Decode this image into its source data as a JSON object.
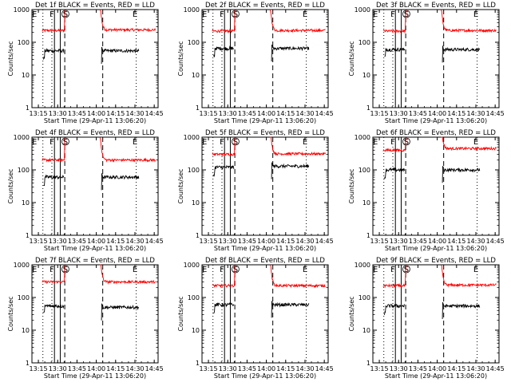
{
  "chart_data": {
    "type": "line",
    "x_ticks": [
      "13:15",
      "13:30",
      "13:45",
      "14:00",
      "14:15",
      "14:30",
      "14:45"
    ],
    "y_ticks": [
      "1",
      "10",
      "100",
      "1000"
    ],
    "y_scale": "log",
    "ylim": [
      1,
      1000
    ],
    "ylabel": "Counts/sec",
    "xlabel": "Start Time (29-Apr-11 13:06:20)",
    "marker_labels": [
      "E",
      "F",
      "S",
      "E"
    ],
    "colors": {
      "events": "#000000",
      "lld": "#ff0000"
    },
    "panels": [
      {
        "title": "Det 1f BLACK = Events, RED = LLD",
        "events_pre": 55,
        "events_post": 55,
        "lld_pre": 230,
        "lld_post": 240
      },
      {
        "title": "Det 2f BLACK = Events, RED = LLD",
        "events_pre": 65,
        "events_post": 65,
        "lld_pre": 220,
        "lld_post": 230
      },
      {
        "title": "Det 3f BLACK = Events, RED = LLD",
        "events_pre": 60,
        "events_post": 60,
        "lld_pre": 220,
        "lld_post": 230
      },
      {
        "title": "Det 4f BLACK = Events, RED = LLD",
        "events_pre": 60,
        "events_post": 60,
        "lld_pre": 200,
        "lld_post": 200
      },
      {
        "title": "Det 5f BLACK = Events, RED = LLD",
        "events_pre": 120,
        "events_post": 130,
        "lld_pre": 300,
        "lld_post": 310
      },
      {
        "title": "Det 6f BLACK = Events, RED = LLD",
        "events_pre": 100,
        "events_post": 100,
        "lld_pre": 400,
        "lld_post": 450
      },
      {
        "title": "Det 7f BLACK = Events, RED = LLD",
        "events_pre": 55,
        "events_post": 50,
        "lld_pre": 300,
        "lld_post": 300
      },
      {
        "title": "Det 8f BLACK = Events, RED = LLD",
        "events_pre": 60,
        "events_post": 60,
        "lld_pre": 230,
        "lld_post": 230
      },
      {
        "title": "Det 9f BLACK = Events, RED = LLD",
        "events_pre": 55,
        "events_post": 55,
        "lld_pre": 230,
        "lld_post": 240
      }
    ]
  }
}
